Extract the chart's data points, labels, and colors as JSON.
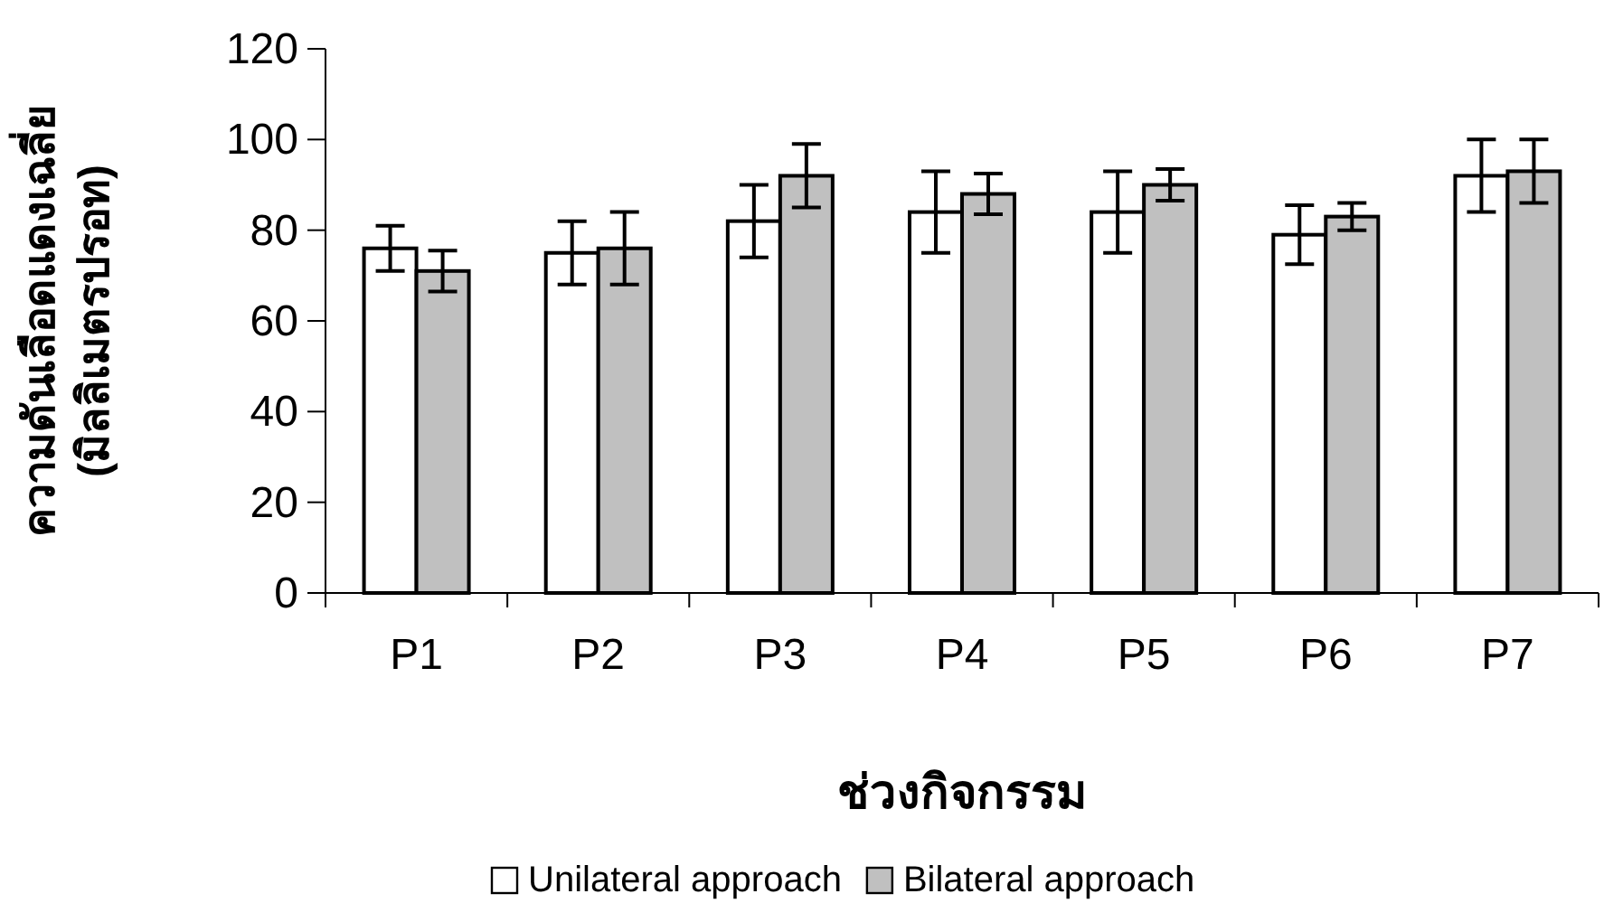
{
  "chart_data": {
    "type": "bar",
    "xlabel": "ช่วงกิจกรรม",
    "ylabel": "ความดันเลือดแดงเฉลี่ย (มิลลิเมตรปรอท)",
    "categories": [
      "P1",
      "P2",
      "P3",
      "P4",
      "P5",
      "P6",
      "P7"
    ],
    "series": [
      {
        "name": "Unilateral approach",
        "color": "#ffffff",
        "values": [
          76,
          75,
          82,
          84,
          84,
          79,
          92
        ],
        "errors": [
          5,
          7,
          8,
          9,
          9,
          6.5,
          8
        ]
      },
      {
        "name": "Bilateral approach",
        "color": "#c0c0c0",
        "values": [
          71,
          76,
          92,
          88,
          90,
          83,
          93
        ],
        "errors": [
          4.5,
          8,
          7,
          4.5,
          3.5,
          3,
          7
        ]
      }
    ],
    "ylim": [
      0,
      120
    ],
    "yticks": [
      0,
      20,
      40,
      60,
      80,
      100,
      120
    ],
    "grid": false,
    "legend": "bottom"
  }
}
